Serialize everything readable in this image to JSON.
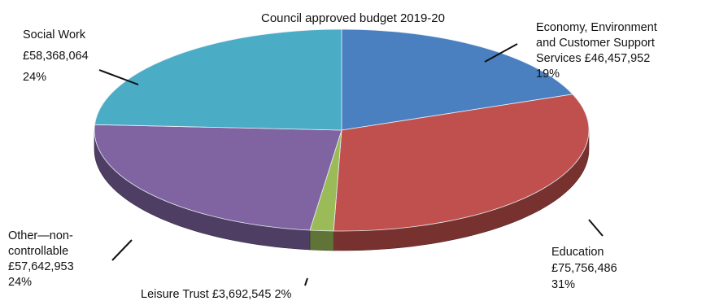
{
  "chart_data": {
    "type": "pie",
    "title": "Council approved budget 2019-20",
    "slices": [
      {
        "label": "Economy, Environment and Customer Support Services",
        "value": 46457952,
        "value_text": "£46,457,952",
        "percent": 19,
        "percent_text": "19%",
        "color": "#4a7fc0"
      },
      {
        "label": "Education",
        "value": 75756486,
        "value_text": "£75,756,486",
        "percent": 31,
        "percent_text": "31%",
        "color": "#c0504d"
      },
      {
        "label": "Leisure Trust",
        "value": 3692545,
        "value_text": "£3,692,545",
        "percent": 2,
        "percent_text": "2%",
        "color": "#9bbb59"
      },
      {
        "label": "Other—non-controllable",
        "value": 57642953,
        "value_text": "£57,642,953",
        "percent": 24,
        "percent_text": "24%",
        "color": "#8064a2"
      },
      {
        "label": "Social Work",
        "value": 58368064,
        "value_text": "£58,368,064",
        "percent": 24,
        "percent_text": "24%",
        "color": "#4bacc6"
      }
    ],
    "label_lines": {
      "economy": [
        "Economy, Environment",
        "and Customer Support",
        "Services £46,457,952",
        "19%"
      ],
      "education": [
        "Education",
        "£75,756,486",
        "31%"
      ],
      "leisure": [
        "Leisure Trust £3,692,545 2%"
      ],
      "other": [
        "Other—non-",
        "controllable",
        "£57,642,953",
        "24%"
      ],
      "social": [
        "Social Work",
        "£58,368,064",
        "24%"
      ]
    },
    "start_angle": "12 o'clock",
    "direction": "clockwise",
    "style": "3d"
  }
}
